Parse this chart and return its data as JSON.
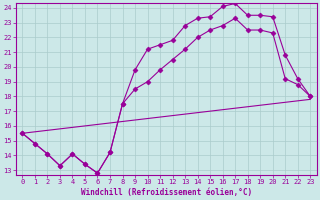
{
  "xlabel": "Windchill (Refroidissement éolien,°C)",
  "line_color": "#990099",
  "bg_color": "#cce8e8",
  "grid_color": "#aacccc",
  "xlim": [
    -0.5,
    23.5
  ],
  "ylim": [
    12.7,
    24.3
  ],
  "xticks": [
    0,
    1,
    2,
    3,
    4,
    5,
    6,
    7,
    8,
    9,
    10,
    11,
    12,
    13,
    14,
    15,
    16,
    17,
    18,
    19,
    20,
    21,
    22,
    23
  ],
  "yticks": [
    13,
    14,
    15,
    16,
    17,
    18,
    19,
    20,
    21,
    22,
    23,
    24
  ],
  "line1_x": [
    0,
    1,
    2,
    3,
    4,
    5,
    6,
    7,
    8,
    9,
    10,
    11,
    12,
    13,
    14,
    15,
    16,
    17,
    18,
    19,
    20,
    21,
    22,
    23
  ],
  "line1_y": [
    15.5,
    14.8,
    14.1,
    13.3,
    14.1,
    13.4,
    12.8,
    14.2,
    17.5,
    19.8,
    21.2,
    21.5,
    21.8,
    22.8,
    23.3,
    23.4,
    24.1,
    24.3,
    23.5,
    23.5,
    23.4,
    20.8,
    19.2,
    18.0
  ],
  "line2_x": [
    0,
    1,
    2,
    3,
    4,
    5,
    6,
    7,
    8,
    9,
    10,
    11,
    12,
    13,
    14,
    15,
    16,
    17,
    18,
    19,
    20,
    21,
    22,
    23
  ],
  "line2_y": [
    15.5,
    14.8,
    14.1,
    13.3,
    14.1,
    13.4,
    12.8,
    14.2,
    17.5,
    18.5,
    19.0,
    19.8,
    20.5,
    21.2,
    22.0,
    22.5,
    22.8,
    23.3,
    22.5,
    22.5,
    22.3,
    19.2,
    18.8,
    18.0
  ],
  "line3_x": [
    0,
    23
  ],
  "line3_y": [
    15.5,
    17.8
  ],
  "marker": "D",
  "marker_size": 2.5,
  "linewidth": 0.8,
  "font_family": "monospace",
  "tick_fontsize": 5,
  "xlabel_fontsize": 5.5
}
